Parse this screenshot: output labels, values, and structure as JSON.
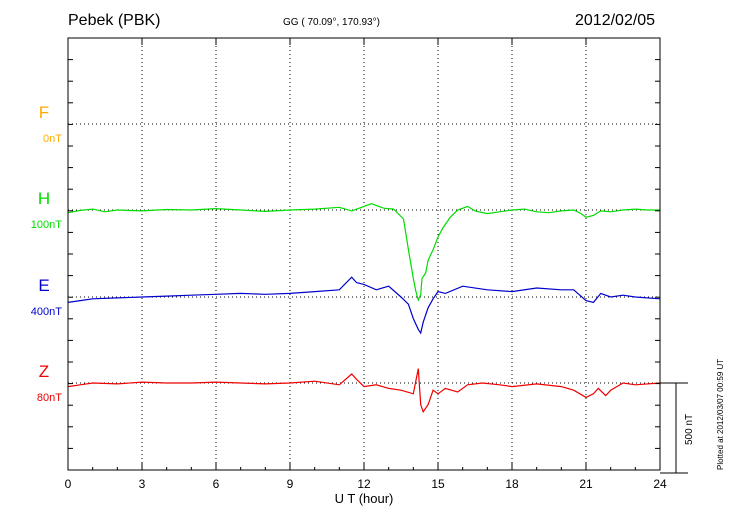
{
  "header": {
    "station": "Pebek (PBK)",
    "coords": "GG ( 70.09°, 170.93°)",
    "date": "2012/02/05",
    "plotted": "Plotted at 2012/03/07 00:59 UT"
  },
  "chart_data": {
    "type": "line",
    "title": "Pebek (PBK)",
    "xlabel": "U T (hour)",
    "xlim": [
      0,
      24
    ],
    "xticks": [
      "0",
      "3",
      "6",
      "9",
      "12",
      "15",
      "18",
      "21",
      "24"
    ],
    "grid": true,
    "scale_bar": {
      "label": "500 nT",
      "value": 500
    },
    "series": [
      {
        "name": "F",
        "offset_label": "0nT",
        "color": "#ffaa00",
        "x": [],
        "y": []
      },
      {
        "name": "H",
        "offset_label": "100nT",
        "color": "#00dd00",
        "x": [
          0,
          0.5,
          1,
          1.5,
          2,
          3,
          4,
          5,
          6,
          7,
          8,
          9,
          10,
          11,
          11.5,
          12,
          12.3,
          12.8,
          13.2,
          13.6,
          13.8,
          14,
          14.1,
          14.2,
          14.3,
          14.35,
          14.5,
          14.6,
          14.8,
          15,
          15.2,
          15.5,
          15.8,
          16.2,
          16.5,
          17,
          17.5,
          18,
          18.5,
          19,
          19.5,
          20,
          20.5,
          20.8,
          21,
          21.3,
          21.6,
          22,
          22.5,
          23,
          23.5,
          24
        ],
        "y": [
          -15,
          -2,
          5,
          -10,
          0,
          -5,
          3,
          0,
          8,
          0,
          -8,
          0,
          5,
          15,
          -5,
          20,
          35,
          10,
          5,
          -50,
          -220,
          -380,
          -450,
          -500,
          -470,
          -380,
          -350,
          -280,
          -220,
          -150,
          -100,
          -40,
          0,
          20,
          -5,
          -20,
          -10,
          0,
          5,
          -10,
          -15,
          -5,
          0,
          -20,
          -40,
          -30,
          -5,
          -10,
          0,
          5,
          0,
          0
        ]
      },
      {
        "name": "E",
        "offset_label": "400nT",
        "color": "#0000cc",
        "x": [
          0,
          0.5,
          1,
          2,
          3,
          4,
          5,
          6,
          7,
          8,
          9,
          10,
          11,
          11.5,
          11.7,
          12,
          12.5,
          13,
          13.5,
          13.8,
          14,
          14.2,
          14.3,
          14.4,
          14.6,
          14.8,
          15,
          15.3,
          16,
          17,
          18,
          19,
          20,
          20.5,
          21,
          21.3,
          21.6,
          22,
          22.5,
          23,
          24
        ],
        "y": [
          -30,
          -20,
          -10,
          -5,
          0,
          5,
          10,
          15,
          20,
          15,
          20,
          30,
          40,
          110,
          80,
          70,
          40,
          60,
          0,
          -40,
          -120,
          -180,
          -200,
          -140,
          -60,
          -10,
          30,
          20,
          60,
          40,
          30,
          50,
          40,
          40,
          -20,
          -30,
          20,
          0,
          10,
          0,
          -10
        ]
      },
      {
        "name": "Z",
        "offset_label": "80nT",
        "color": "#ee0000",
        "x": [
          0,
          0.5,
          1,
          2,
          3,
          4,
          5,
          6,
          7,
          8,
          9,
          10,
          11,
          11.5,
          11.7,
          12,
          12.5,
          13,
          13.5,
          14,
          14.2,
          14.3,
          14.4,
          14.6,
          14.8,
          15,
          15.3,
          15.8,
          16.2,
          16.8,
          17.5,
          18,
          19,
          20,
          20.5,
          21,
          21.3,
          21.5,
          21.8,
          22,
          22.5,
          23,
          24
        ],
        "y": [
          -20,
          -10,
          0,
          -5,
          5,
          0,
          0,
          5,
          0,
          -5,
          0,
          10,
          -10,
          50,
          20,
          -20,
          -10,
          -30,
          -40,
          -60,
          80,
          -120,
          -160,
          -120,
          -40,
          -60,
          -30,
          -50,
          -10,
          0,
          -10,
          -20,
          -5,
          -20,
          -40,
          -80,
          -60,
          -30,
          -70,
          -40,
          0,
          -10,
          0
        ]
      },
      {
        "name": "",
        "offset_label": "",
        "color": "#000000",
        "x": [],
        "y": []
      }
    ]
  }
}
